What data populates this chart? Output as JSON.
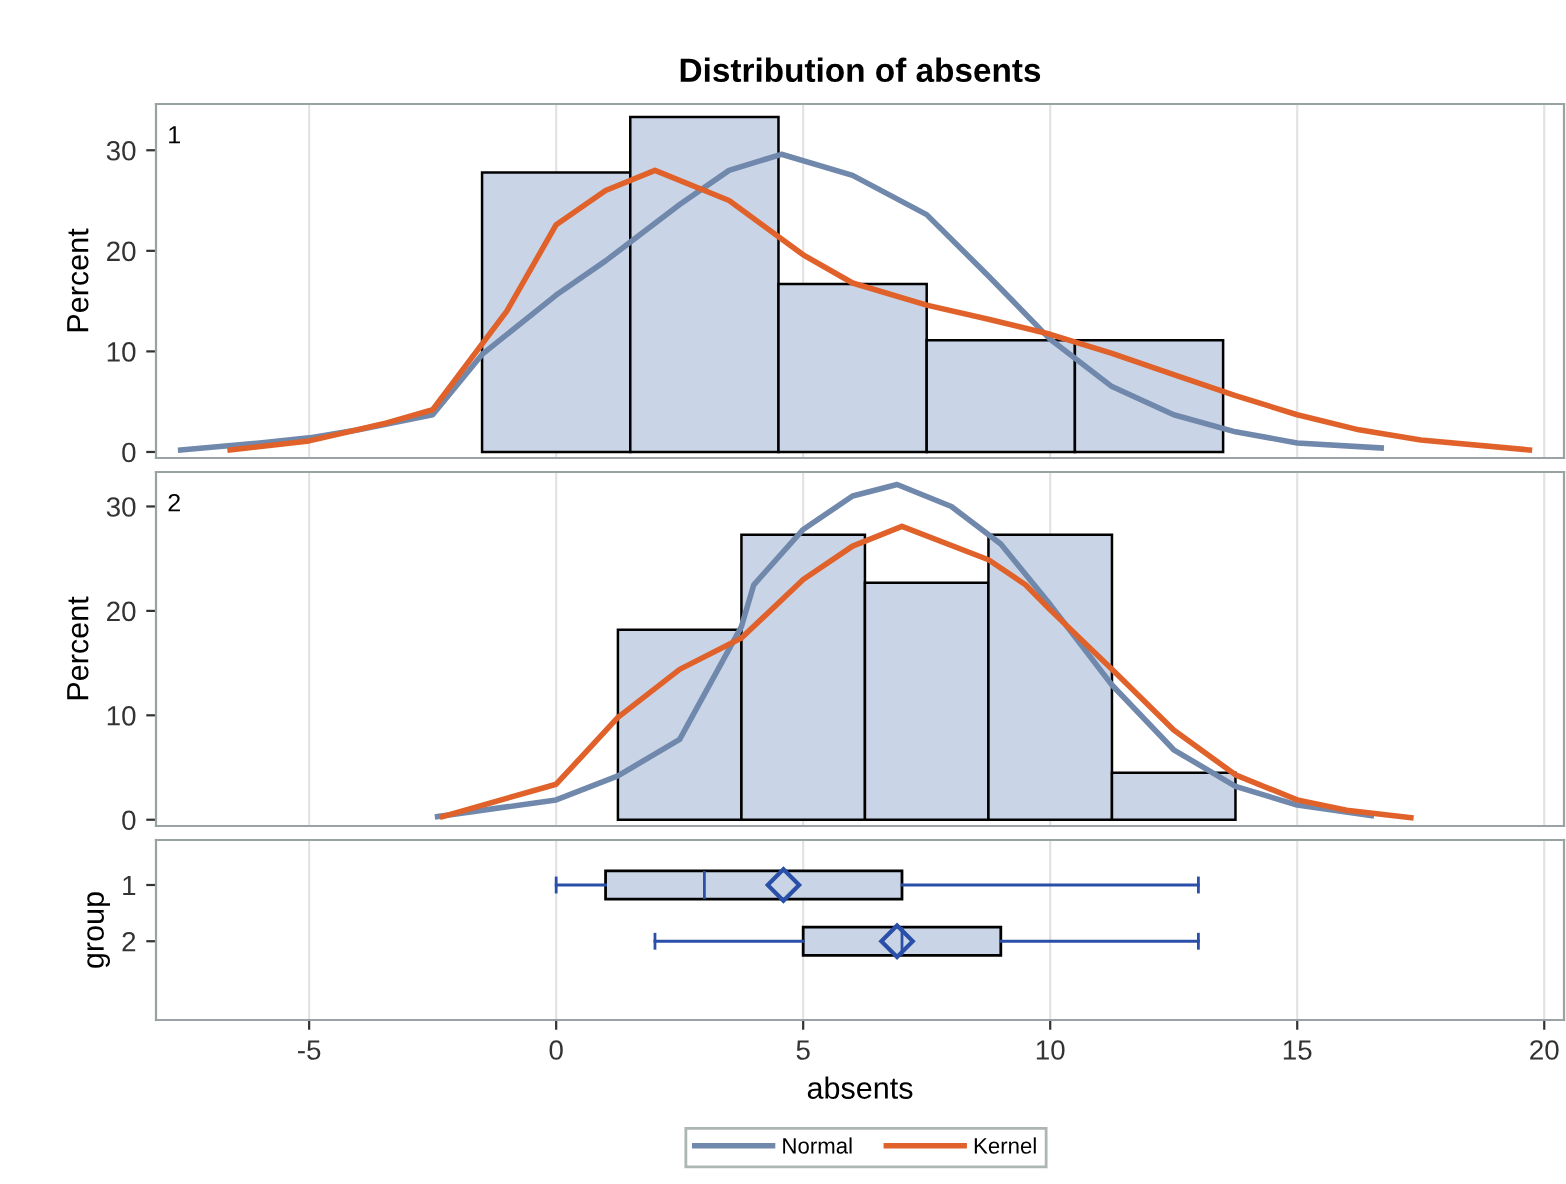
{
  "chart_data": [
    {
      "type": "histogram",
      "title": "Distribution of absents",
      "ylabel": "Percent",
      "annotations": [
        "1"
      ],
      "bins": [
        -1.5,
        1.5,
        4.5,
        7.5,
        10.5,
        13.5
      ],
      "values": [
        27.8,
        33.3,
        16.7,
        11.1,
        11.1
      ],
      "color": "#c9d5e6",
      "xlim": [
        -8.1,
        20.4
      ],
      "ylim": [
        -0.6,
        34.6
      ],
      "xticks": [
        -5,
        0,
        5,
        10,
        15,
        20
      ],
      "yticks": [
        0,
        10,
        20,
        30
      ],
      "tick_labels": "y",
      "grid": "x",
      "legend": "bottom",
      "series": [
        {
          "name": "Normal",
          "type": "line",
          "color": "#7088ab",
          "x": [
            -7.6,
            -6,
            -5,
            -4,
            -2.5,
            -1.5,
            0,
            1,
            2.5,
            3.5,
            4.56,
            6,
            7.5,
            8.75,
            10,
            11.25,
            12.5,
            13.75,
            15,
            16.7
          ],
          "values": [
            0.2,
            0.9,
            1.4,
            2.2,
            3.7,
            9.7,
            15.6,
            19,
            24.6,
            28,
            29.6,
            27.5,
            23.6,
            17.5,
            11.2,
            6.5,
            3.7,
            2,
            0.9,
            0.4
          ]
        },
        {
          "name": "Kernel",
          "type": "line",
          "color": "#e0622a",
          "x": [
            -6.6,
            -5,
            -3.5,
            -2.5,
            -1,
            0,
            1,
            2,
            3.5,
            5,
            6,
            7.5,
            8.75,
            10,
            11.25,
            12.5,
            13.75,
            15,
            16.25,
            17.5,
            19.7
          ],
          "values": [
            0.2,
            1.1,
            2.8,
            4.2,
            14,
            22.6,
            26,
            28,
            25,
            19.6,
            16.8,
            14.6,
            13.2,
            11.7,
            9.8,
            7.7,
            5.6,
            3.7,
            2.2,
            1.2,
            0.2
          ]
        }
      ]
    },
    {
      "type": "histogram",
      "ylabel": "Percent",
      "annotations": [
        "2"
      ],
      "bins": [
        1.25,
        3.75,
        6.25,
        8.75,
        11.25,
        13.75
      ],
      "values": [
        18.2,
        27.3,
        22.7,
        27.3,
        4.5
      ],
      "color": "#c9d5e6",
      "xlim": [
        -8.1,
        20.4
      ],
      "ylim": [
        -0.6,
        33.3
      ],
      "xticks": [
        -5,
        0,
        5,
        10,
        15,
        20
      ],
      "yticks": [
        0,
        10,
        20,
        30
      ],
      "tick_labels": "y",
      "grid": "x",
      "series": [
        {
          "name": "Normal",
          "type": "line",
          "color": "#7088ab",
          "x": [
            -2.4,
            0,
            1.25,
            2.5,
            3.75,
            4,
            5,
            6,
            6.9,
            8,
            9,
            10,
            11.25,
            12.5,
            13.75,
            15,
            16.5
          ],
          "values": [
            0.3,
            1.9,
            4.2,
            7.7,
            18.5,
            22.5,
            27.8,
            31,
            32.1,
            30,
            26.4,
            20.6,
            12.9,
            6.7,
            3.2,
            1.4,
            0.4
          ]
        },
        {
          "name": "Kernel",
          "type": "line",
          "color": "#e0622a",
          "x": [
            -2.3,
            0,
            1.25,
            2.5,
            3.75,
            5,
            6,
            7,
            8.75,
            9.5,
            10,
            11.25,
            12.5,
            13.75,
            15,
            16,
            17.3
          ],
          "values": [
            0.3,
            3.4,
            9.8,
            14.4,
            17.4,
            23,
            26.2,
            28.1,
            24.9,
            22.5,
            20.1,
            14.4,
            8.6,
            4.3,
            1.9,
            0.9,
            0.2
          ]
        }
      ]
    },
    {
      "type": "box",
      "orientation": "horizontal",
      "xlabel": "absents",
      "ylabel": "group",
      "categories": [
        "1",
        "2"
      ],
      "color": "#c9d5e6",
      "xlim": [
        -8.1,
        20.4
      ],
      "xticks": [
        -5,
        0,
        5,
        10,
        15,
        20
      ],
      "grid": "x",
      "marker": "diamond",
      "boxes": [
        {
          "low": 0,
          "q1": 1,
          "median": 3,
          "q3": 7,
          "high": 13,
          "mean": 4.6
        },
        {
          "low": 2,
          "q1": 5,
          "median": 7,
          "q3": 9,
          "high": 13,
          "mean": 6.9
        }
      ]
    }
  ]
}
